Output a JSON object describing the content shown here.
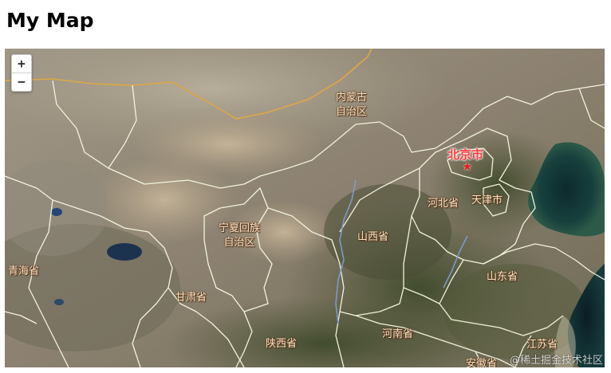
{
  "page": {
    "title": "My Map"
  },
  "zoom": {
    "in_label": "+",
    "out_label": "−"
  },
  "map": {
    "basemap": "satellite imagery",
    "boundary_color": "#f2f2dc",
    "national_border_color": "#d8a64a",
    "river_color": "#7f9fd8",
    "labels": {
      "inner_mongolia_line1": "内蒙古",
      "inner_mongolia_line2": "自治区",
      "beijing": "北京市",
      "hebei": "河北省",
      "tianjin": "天津市",
      "ningxia_line1": "宁夏回族",
      "ningxia_line2": "自治区",
      "shanxi": "山西省",
      "qinghai": "青海省",
      "shandong": "山东省",
      "gansu": "甘肃省",
      "henan": "河南省",
      "shaanxi": "陕西省",
      "jiangsu": "江苏省",
      "anhui": "安徽省"
    },
    "capital_icon": "star-icon"
  },
  "attribution": {
    "text": "@稀土掘金技术社区"
  }
}
